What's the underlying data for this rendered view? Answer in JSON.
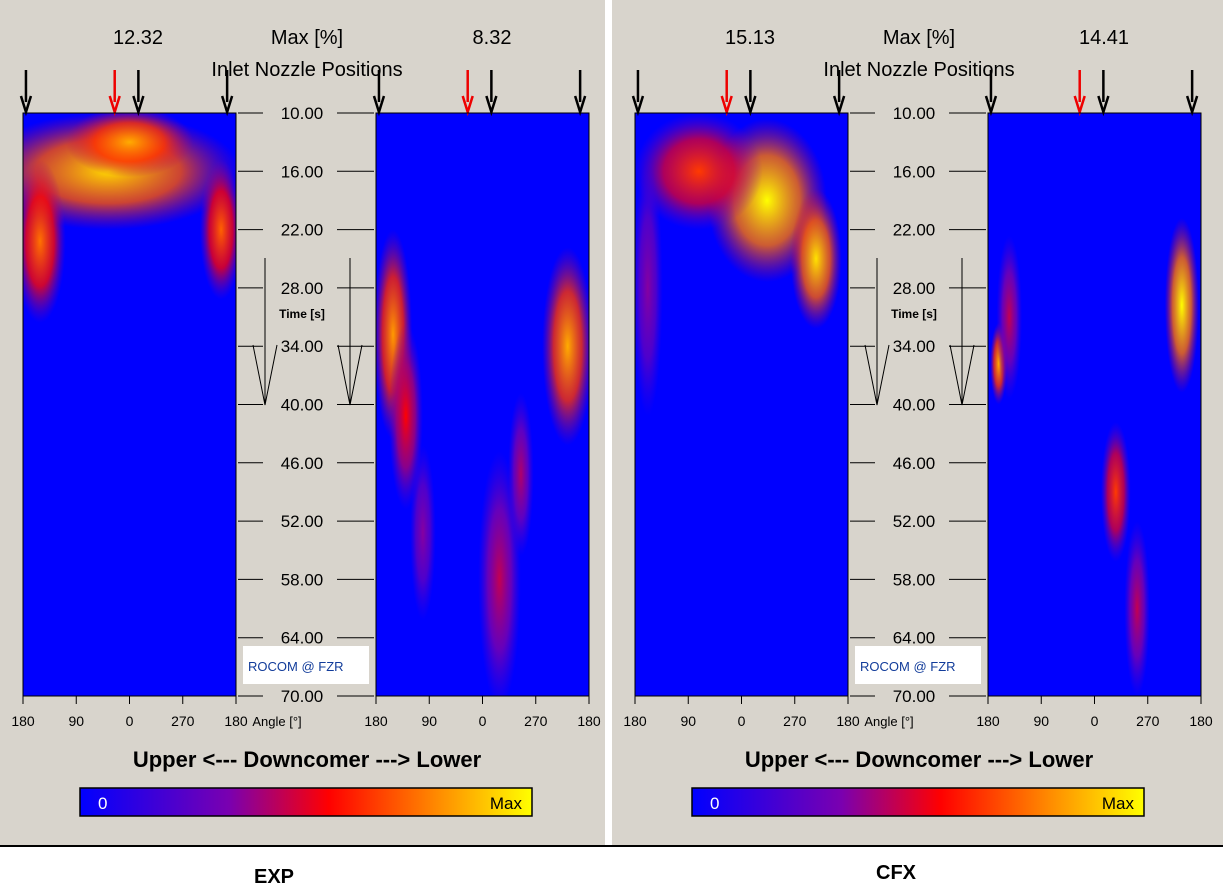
{
  "figure": {
    "left_caption": "EXP",
    "right_caption": "CFX"
  },
  "chart_data": [
    {
      "type": "heatmap",
      "name": "EXP",
      "title": "Inlet Nozzle Positions",
      "max_label": "Max [%]",
      "max_upper": "12.32",
      "max_lower": "8.32",
      "y_axis_label": "Time [s]",
      "x_axis_label": "Angle [°]",
      "y_ticks": [
        "10.00",
        "16.00",
        "22.00",
        "28.00",
        "34.00",
        "40.00",
        "46.00",
        "52.00",
        "58.00",
        "64.00",
        "70.00"
      ],
      "y_range": [
        10,
        70
      ],
      "x_ticks_upper": [
        "180",
        "90",
        "0",
        "270",
        "180"
      ],
      "x_ticks_lower": [
        "180",
        "90",
        "0",
        "270",
        "180"
      ],
      "x_range_deg": [
        180,
        -180
      ],
      "caption": "Upper  <---  Downcomer  --->  Lower",
      "colorbar": {
        "min_label": "0",
        "max_label": "Max"
      },
      "logo": "ROCOM @ FZR",
      "nozzle_arrows_upper": [
        {
          "angle": 175,
          "color": "black"
        },
        {
          "angle": 25,
          "color": "red"
        },
        {
          "angle": -15,
          "color": "black"
        },
        {
          "angle": -165,
          "color": "black"
        }
      ],
      "nozzle_arrows_lower": [
        {
          "angle": 175,
          "color": "black"
        },
        {
          "angle": 25,
          "color": "red"
        },
        {
          "angle": -15,
          "color": "black"
        },
        {
          "angle": -165,
          "color": "black"
        }
      ],
      "hotspots_upper": [
        {
          "cx": 0.4,
          "cy": 0.1,
          "rx": 0.62,
          "ry": 0.1,
          "i": 0.93
        },
        {
          "cx": 0.5,
          "cy": 0.05,
          "rx": 0.3,
          "ry": 0.06,
          "i": 0.85
        },
        {
          "cx": 0.08,
          "cy": 0.22,
          "rx": 0.12,
          "ry": 0.14,
          "i": 0.75
        },
        {
          "cx": 0.93,
          "cy": 0.2,
          "rx": 0.1,
          "ry": 0.12,
          "i": 0.72
        }
      ],
      "hotspots_lower": [
        {
          "cx": 0.08,
          "cy": 0.38,
          "rx": 0.09,
          "ry": 0.18,
          "i": 0.82
        },
        {
          "cx": 0.14,
          "cy": 0.52,
          "rx": 0.08,
          "ry": 0.16,
          "i": 0.55
        },
        {
          "cx": 0.9,
          "cy": 0.4,
          "rx": 0.12,
          "ry": 0.17,
          "i": 0.85
        },
        {
          "cx": 0.58,
          "cy": 0.8,
          "rx": 0.1,
          "ry": 0.22,
          "i": 0.45
        },
        {
          "cx": 0.68,
          "cy": 0.62,
          "rx": 0.06,
          "ry": 0.14,
          "i": 0.42
        },
        {
          "cx": 0.22,
          "cy": 0.72,
          "rx": 0.06,
          "ry": 0.15,
          "i": 0.35
        }
      ]
    },
    {
      "type": "heatmap",
      "name": "CFX",
      "title": "Inlet Nozzle Positions",
      "max_label": "Max [%]",
      "max_upper": "15.13",
      "max_lower": "14.41",
      "y_axis_label": "Time [s]",
      "x_axis_label": "Angle [°]",
      "y_ticks": [
        "10.00",
        "16.00",
        "22.00",
        "28.00",
        "34.00",
        "40.00",
        "46.00",
        "52.00",
        "58.00",
        "64.00",
        "70.00"
      ],
      "y_range": [
        10,
        70
      ],
      "x_ticks_upper": [
        "180",
        "90",
        "0",
        "270",
        "180"
      ],
      "x_ticks_lower": [
        "180",
        "90",
        "0",
        "270",
        "180"
      ],
      "x_range_deg": [
        180,
        -180
      ],
      "caption": "Upper  <---  Downcomer  --->  Lower",
      "colorbar": {
        "min_label": "0",
        "max_label": "Max"
      },
      "logo": "ROCOM @ FZR",
      "nozzle_arrows_upper": [
        {
          "angle": 175,
          "color": "black"
        },
        {
          "angle": 25,
          "color": "red"
        },
        {
          "angle": -15,
          "color": "black"
        },
        {
          "angle": -165,
          "color": "black"
        }
      ],
      "nozzle_arrows_lower": [
        {
          "angle": 175,
          "color": "black"
        },
        {
          "angle": 25,
          "color": "red"
        },
        {
          "angle": -15,
          "color": "black"
        },
        {
          "angle": -165,
          "color": "black"
        }
      ],
      "hotspots_upper": [
        {
          "cx": 0.62,
          "cy": 0.15,
          "rx": 0.28,
          "ry": 0.14,
          "i": 1.0
        },
        {
          "cx": 0.85,
          "cy": 0.25,
          "rx": 0.12,
          "ry": 0.12,
          "i": 0.95
        },
        {
          "cx": 0.3,
          "cy": 0.1,
          "rx": 0.3,
          "ry": 0.1,
          "i": 0.65
        },
        {
          "cx": 0.06,
          "cy": 0.3,
          "rx": 0.07,
          "ry": 0.22,
          "i": 0.35
        }
      ],
      "hotspots_lower": [
        {
          "cx": 0.05,
          "cy": 0.43,
          "rx": 0.04,
          "ry": 0.07,
          "i": 0.85
        },
        {
          "cx": 0.1,
          "cy": 0.35,
          "rx": 0.06,
          "ry": 0.14,
          "i": 0.45
        },
        {
          "cx": 0.91,
          "cy": 0.33,
          "rx": 0.08,
          "ry": 0.15,
          "i": 1.0
        },
        {
          "cx": 0.6,
          "cy": 0.65,
          "rx": 0.07,
          "ry": 0.12,
          "i": 0.65
        },
        {
          "cx": 0.7,
          "cy": 0.85,
          "rx": 0.06,
          "ry": 0.15,
          "i": 0.45
        }
      ]
    }
  ]
}
